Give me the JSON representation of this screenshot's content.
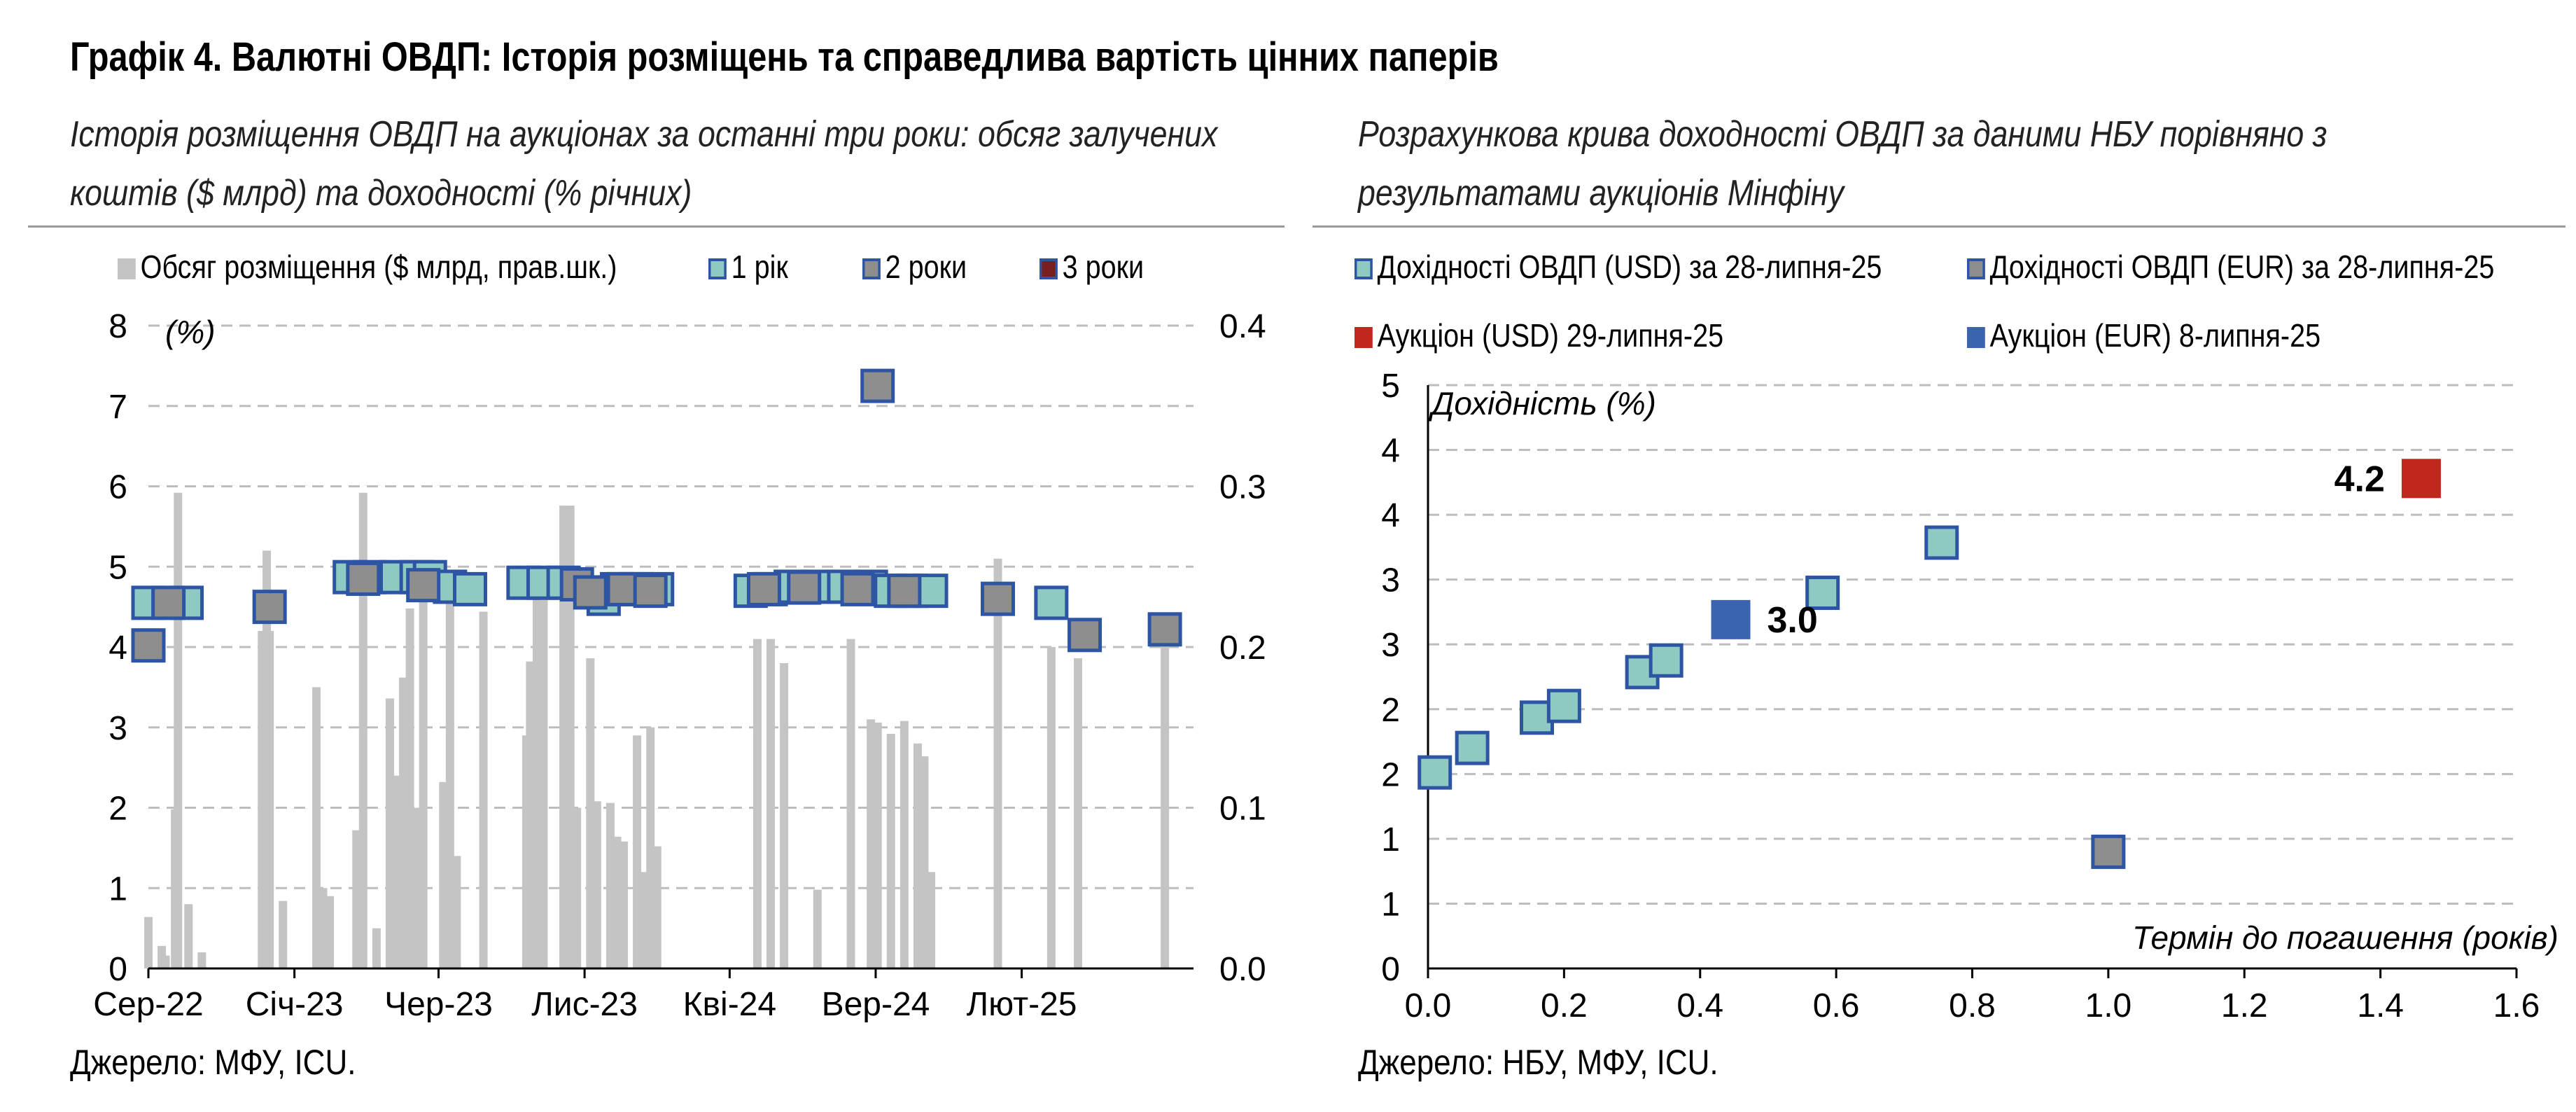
{
  "header": {
    "title": "Графік 4. Валютні ОВДП: Історія розміщень та справедлива вартість цінних паперів",
    "left_subtitle_line1": "Історія розміщення ОВДП на аукціонах за останні три роки: обсяг залучених",
    "left_subtitle_line2": "коштів ($ млрд) та доходності (% річних)",
    "right_subtitle_line1": "Розрахункова крива доходності ОВДП за даними НБУ порівняно з",
    "right_subtitle_line2": "результатами аукціонів Мінфіну",
    "left_source": "Джерело: МФУ, ICU.",
    "right_source": "Джерело: НБУ, МФУ, ICU."
  },
  "colors": {
    "bar": "#c4c4c4",
    "teal": "#8ec9c2",
    "gray_marker": "#8e8e8e",
    "dark_red": "#7a1f1f",
    "red": "#c0281e",
    "blue": "#3a63b0",
    "marker_border": "#2e55a3",
    "grid": "#bdbdbd",
    "axis": "#000000"
  },
  "chart_data": [
    {
      "type": "bar+scatter",
      "ylabel": "(%)",
      "ylim_left": [
        0,
        8
      ],
      "ylim_right": [
        0,
        0.4
      ],
      "yticks_left": [
        "0",
        "1",
        "2",
        "3",
        "4",
        "5",
        "6",
        "7",
        "8"
      ],
      "yticks_right": [
        "0.0",
        "0.1",
        "0.2",
        "0.3",
        "0.4"
      ],
      "xlim": [
        "2022-08-01",
        "2025-07-31"
      ],
      "xticks": [
        {
          "date": "2022-08-01",
          "label": "Сер-22"
        },
        {
          "date": "2023-01-01",
          "label": "Січ-23"
        },
        {
          "date": "2023-06-01",
          "label": "Чер-23"
        },
        {
          "date": "2023-11-01",
          "label": "Лис-23"
        },
        {
          "date": "2024-04-01",
          "label": "Кві-24"
        },
        {
          "date": "2024-09-01",
          "label": "Вер-24"
        },
        {
          "date": "2025-02-01",
          "label": "Лют-25"
        }
      ],
      "grid": true,
      "legend": [
        {
          "label": "Обсяг розміщення ($ млрд, прав.шк.)",
          "kind": "bar"
        },
        {
          "label": "1 рік",
          "kind": "teal"
        },
        {
          "label": "2 роки",
          "kind": "gray_marker"
        },
        {
          "label": "3 роки",
          "kind": "dark_red"
        }
      ],
      "bars": [
        {
          "date": "2022-08-01",
          "value": 0.032
        },
        {
          "date": "2022-08-15",
          "value": 0.014
        },
        {
          "date": "2022-08-19",
          "value": 0.008
        },
        {
          "date": "2022-08-29",
          "value": 0.099
        },
        {
          "date": "2022-09-01",
          "value": 0.296
        },
        {
          "date": "2022-09-12",
          "value": 0.04
        },
        {
          "date": "2022-09-26",
          "value": 0.01
        },
        {
          "date": "2022-11-28",
          "value": 0.21
        },
        {
          "date": "2022-12-03",
          "value": 0.26
        },
        {
          "date": "2022-12-06",
          "value": 0.21
        },
        {
          "date": "2022-12-20",
          "value": 0.042
        },
        {
          "date": "2023-01-24",
          "value": 0.175
        },
        {
          "date": "2023-01-31",
          "value": 0.05
        },
        {
          "date": "2023-02-07",
          "value": 0.045
        },
        {
          "date": "2023-03-07",
          "value": 0.086
        },
        {
          "date": "2023-03-14",
          "value": 0.296
        },
        {
          "date": "2023-03-28",
          "value": 0.025
        },
        {
          "date": "2023-04-11",
          "value": 0.168
        },
        {
          "date": "2023-04-18",
          "value": 0.12
        },
        {
          "date": "2023-04-25",
          "value": 0.181
        },
        {
          "date": "2023-05-02",
          "value": 0.224
        },
        {
          "date": "2023-05-09",
          "value": 0.1
        },
        {
          "date": "2023-05-16",
          "value": 0.242
        },
        {
          "date": "2023-06-06",
          "value": 0.116
        },
        {
          "date": "2023-06-13",
          "value": 0.236
        },
        {
          "date": "2023-06-20",
          "value": 0.07
        },
        {
          "date": "2023-07-18",
          "value": 0.222
        },
        {
          "date": "2023-09-01",
          "value": 0.145
        },
        {
          "date": "2023-09-05",
          "value": 0.191
        },
        {
          "date": "2023-09-12",
          "value": 0.24
        },
        {
          "date": "2023-09-19",
          "value": 0.24
        },
        {
          "date": "2023-10-10",
          "value": 0.288
        },
        {
          "date": "2023-10-17",
          "value": 0.288
        },
        {
          "date": "2023-10-24",
          "value": 0.1
        },
        {
          "date": "2023-11-07",
          "value": 0.193
        },
        {
          "date": "2023-11-14",
          "value": 0.104
        },
        {
          "date": "2023-11-28",
          "value": 0.103
        },
        {
          "date": "2023-12-05",
          "value": 0.082
        },
        {
          "date": "2023-12-12",
          "value": 0.079
        },
        {
          "date": "2023-12-26",
          "value": 0.145
        },
        {
          "date": "2024-01-02",
          "value": 0.06
        },
        {
          "date": "2024-01-09",
          "value": 0.15
        },
        {
          "date": "2024-01-16",
          "value": 0.076
        },
        {
          "date": "2024-04-30",
          "value": 0.205
        },
        {
          "date": "2024-05-14",
          "value": 0.205
        },
        {
          "date": "2024-05-28",
          "value": 0.19
        },
        {
          "date": "2024-07-02",
          "value": 0.049
        },
        {
          "date": "2024-08-06",
          "value": 0.205
        },
        {
          "date": "2024-08-27",
          "value": 0.155
        },
        {
          "date": "2024-09-03",
          "value": 0.153
        },
        {
          "date": "2024-09-17",
          "value": 0.146
        },
        {
          "date": "2024-10-01",
          "value": 0.154
        },
        {
          "date": "2024-10-15",
          "value": 0.14
        },
        {
          "date": "2024-10-22",
          "value": 0.132
        },
        {
          "date": "2024-10-29",
          "value": 0.06
        },
        {
          "date": "2025-01-07",
          "value": 0.255
        },
        {
          "date": "2025-03-04",
          "value": 0.2
        },
        {
          "date": "2025-04-01",
          "value": 0.193
        },
        {
          "date": "2025-07-01",
          "value": 0.212
        }
      ],
      "series": [
        {
          "key": "1y",
          "legend_label": "1 рік",
          "color_key": "teal",
          "points": [
            {
              "date": "2022-08-01",
              "value": 4.55
            },
            {
              "date": "2022-09-10",
              "value": 4.55
            },
            {
              "date": "2023-02-28",
              "value": 4.87
            },
            {
              "date": "2023-03-21",
              "value": 4.87
            },
            {
              "date": "2023-04-18",
              "value": 4.87
            },
            {
              "date": "2023-05-09",
              "value": 4.87
            },
            {
              "date": "2023-05-23",
              "value": 4.87
            },
            {
              "date": "2023-06-13",
              "value": 4.75
            },
            {
              "date": "2023-07-04",
              "value": 4.72
            },
            {
              "date": "2023-08-29",
              "value": 4.8
            },
            {
              "date": "2023-09-19",
              "value": 4.8
            },
            {
              "date": "2023-10-10",
              "value": 4.8
            },
            {
              "date": "2023-11-21",
              "value": 4.6
            },
            {
              "date": "2023-12-05",
              "value": 4.72
            },
            {
              "date": "2023-12-26",
              "value": 4.72
            },
            {
              "date": "2024-01-16",
              "value": 4.72
            },
            {
              "date": "2024-04-23",
              "value": 4.7
            },
            {
              "date": "2024-05-14",
              "value": 4.72
            },
            {
              "date": "2024-06-04",
              "value": 4.75
            },
            {
              "date": "2024-07-02",
              "value": 4.75
            },
            {
              "date": "2024-07-30",
              "value": 4.75
            },
            {
              "date": "2024-08-27",
              "value": 4.75
            },
            {
              "date": "2024-09-17",
              "value": 4.7
            },
            {
              "date": "2024-10-08",
              "value": 4.7
            },
            {
              "date": "2024-10-29",
              "value": 4.7
            },
            {
              "date": "2025-03-04",
              "value": 4.55
            }
          ]
        },
        {
          "key": "2y",
          "legend_label": "2 роки",
          "color_key": "gray_marker",
          "points": [
            {
              "date": "2022-08-01",
              "value": 4.02
            },
            {
              "date": "2022-08-22",
              "value": 4.55
            },
            {
              "date": "2022-12-06",
              "value": 4.5
            },
            {
              "date": "2023-03-14",
              "value": 4.85
            },
            {
              "date": "2023-05-16",
              "value": 4.77
            },
            {
              "date": "2023-10-24",
              "value": 4.78
            },
            {
              "date": "2023-11-07",
              "value": 4.68
            },
            {
              "date": "2023-12-12",
              "value": 4.72
            },
            {
              "date": "2024-01-09",
              "value": 4.7
            },
            {
              "date": "2024-05-07",
              "value": 4.72
            },
            {
              "date": "2024-06-18",
              "value": 4.74
            },
            {
              "date": "2024-08-13",
              "value": 4.72
            },
            {
              "date": "2024-09-03",
              "value": 7.25
            },
            {
              "date": "2024-10-01",
              "value": 4.7
            },
            {
              "date": "2025-01-07",
              "value": 4.6
            },
            {
              "date": "2025-04-08",
              "value": 4.15
            },
            {
              "date": "2025-07-01",
              "value": 4.22
            }
          ]
        }
      ]
    },
    {
      "type": "scatter",
      "xlabel": "Термін до погашення (років)",
      "ylabel": "Дохідність (%)",
      "xlim": [
        0,
        1.6
      ],
      "ylim": [
        0,
        5
      ],
      "xticks": [
        "0.0",
        "0.2",
        "0.4",
        "0.6",
        "0.8",
        "1.0",
        "1.2",
        "1.4",
        "1.6"
      ],
      "yticks": [
        "0",
        "1",
        "1",
        "2",
        "2",
        "3",
        "3",
        "4",
        "4",
        "5"
      ],
      "grid": true,
      "legend": [
        {
          "label": "Дохідності ОВДП (USD) за 28-липня-25",
          "kind": "teal"
        },
        {
          "label": "Дохідності ОВДП (EUR) за 28-липня-25",
          "kind": "gray_marker"
        },
        {
          "label": "Аукціон (USD) 29-липня-25",
          "kind": "red"
        },
        {
          "label": "Аукціон (EUR) 8-липня-25",
          "kind": "blue"
        }
      ],
      "series": [
        {
          "name": "Дохідності ОВДП (USD) за 28-липня-25",
          "color_key": "teal",
          "points": [
            {
              "x": 0.01,
              "y": 1.68
            },
            {
              "x": 0.065,
              "y": 1.89
            },
            {
              "x": 0.16,
              "y": 2.15
            },
            {
              "x": 0.2,
              "y": 2.25
            },
            {
              "x": 0.315,
              "y": 2.54
            },
            {
              "x": 0.35,
              "y": 2.64
            },
            {
              "x": 0.58,
              "y": 3.22
            },
            {
              "x": 0.755,
              "y": 3.65
            }
          ]
        },
        {
          "name": "Дохідності ОВДП (EUR) за 28-липня-25",
          "color_key": "gray_marker",
          "points": [
            {
              "x": 1.0,
              "y": 1.0
            }
          ]
        },
        {
          "name": "Аукціон (USD) 29-липня-25",
          "color_key": "red",
          "points": [
            {
              "x": 1.46,
              "y": 4.2
            }
          ]
        },
        {
          "name": "Аукціон (EUR) 8-липня-25",
          "color_key": "blue",
          "points": [
            {
              "x": 0.445,
              "y": 2.99
            }
          ]
        }
      ],
      "annotations": [
        {
          "text": "4.2",
          "x": 1.46,
          "y": 4.2
        },
        {
          "text": "3.0",
          "x": 0.445,
          "y": 2.99
        }
      ]
    }
  ]
}
